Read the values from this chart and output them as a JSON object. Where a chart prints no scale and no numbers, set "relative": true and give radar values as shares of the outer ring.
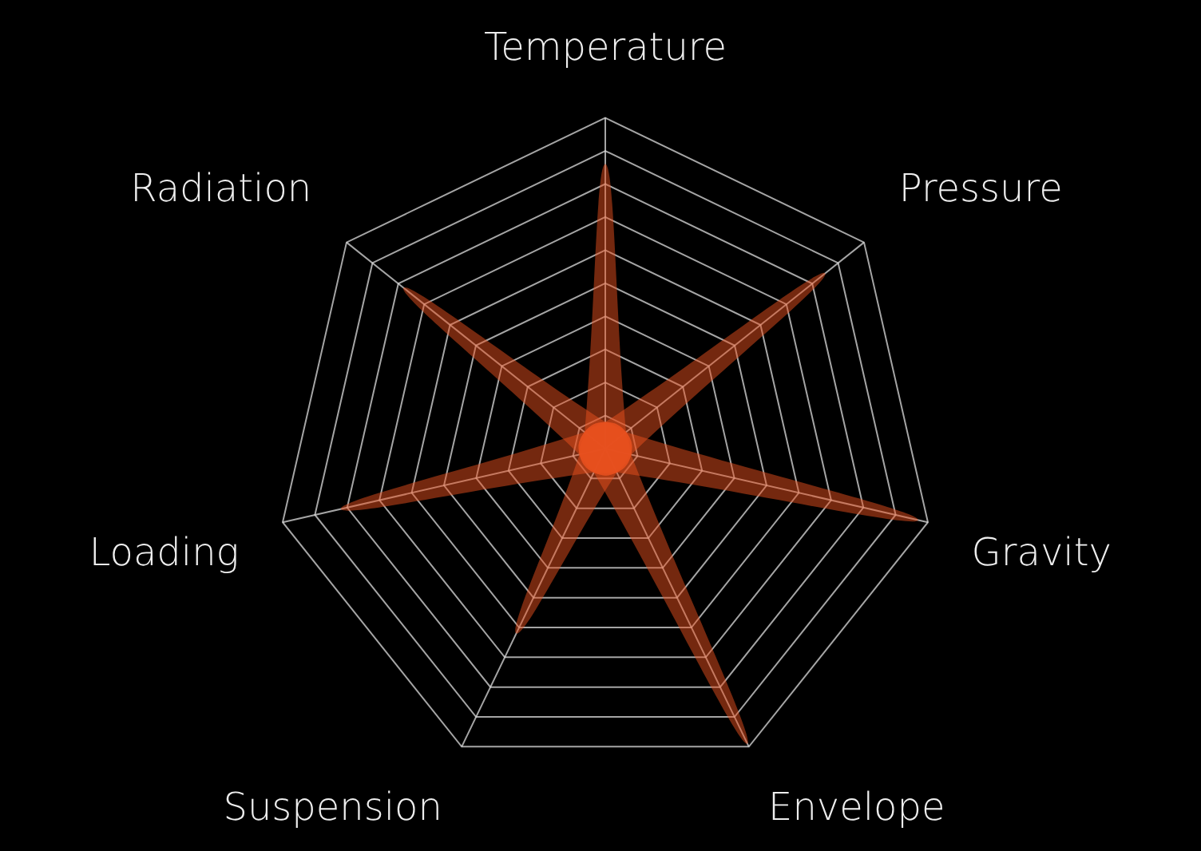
{
  "chart_data": {
    "type": "radar",
    "relative": true,
    "categories": [
      "Temperature",
      "Pressure",
      "Gravity",
      "Envelope",
      "Suspension",
      "Loading",
      "Radiation"
    ],
    "grid": true,
    "legend": false,
    "marker": "none",
    "series": [
      {
        "color": "#e8501e",
        "values": [
          0.86,
          0.08,
          0.08,
          0.08,
          0.08,
          0.08,
          0.08
        ]
      },
      {
        "color": "#e8501e",
        "values": [
          0.08,
          0.85,
          0.08,
          0.08,
          0.08,
          0.08,
          0.08
        ]
      },
      {
        "color": "#e8501e",
        "values": [
          0.08,
          0.08,
          0.97,
          0.08,
          0.08,
          0.08,
          0.08
        ]
      },
      {
        "color": "#e8501e",
        "values": [
          0.08,
          0.08,
          0.08,
          0.99,
          0.08,
          0.08,
          0.08
        ]
      },
      {
        "color": "#e8501e",
        "values": [
          0.08,
          0.08,
          0.08,
          0.08,
          0.62,
          0.08,
          0.08
        ]
      },
      {
        "color": "#e8501e",
        "values": [
          0.08,
          0.08,
          0.08,
          0.08,
          0.08,
          0.82,
          0.08
        ]
      },
      {
        "color": "#e8501e",
        "values": [
          0.08,
          0.08,
          0.08,
          0.08,
          0.08,
          0.08,
          0.78
        ]
      }
    ]
  }
}
